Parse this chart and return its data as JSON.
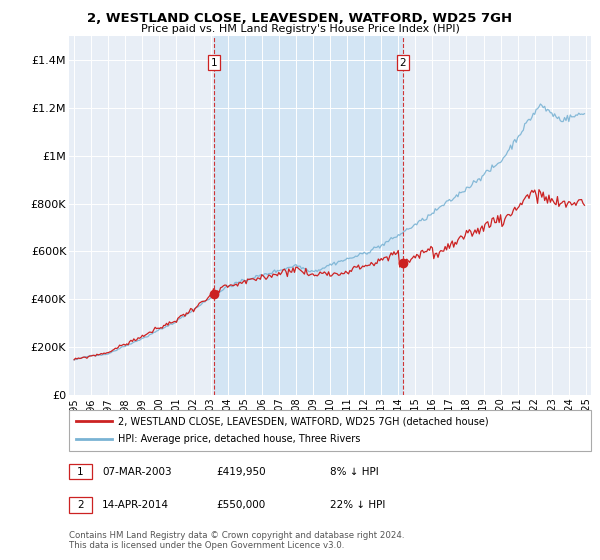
{
  "title": "2, WESTLAND CLOSE, LEAVESDEN, WATFORD, WD25 7GH",
  "subtitle": "Price paid vs. HM Land Registry's House Price Index (HPI)",
  "legend_line1": "2, WESTLAND CLOSE, LEAVESDEN, WATFORD, WD25 7GH (detached house)",
  "legend_line2": "HPI: Average price, detached house, Three Rivers",
  "transaction1_date": "07-MAR-2003",
  "transaction1_price": "£419,950",
  "transaction1_hpi": "8% ↓ HPI",
  "transaction1_year": 2003.18,
  "transaction1_value": 419950,
  "transaction2_date": "14-APR-2014",
  "transaction2_price": "£550,000",
  "transaction2_hpi": "22% ↓ HPI",
  "transaction2_year": 2014.28,
  "transaction2_value": 550000,
  "footer1": "Contains HM Land Registry data © Crown copyright and database right 2024.",
  "footer2": "This data is licensed under the Open Government Licence v3.0.",
  "hpi_color": "#7ab3d4",
  "price_color": "#cc2222",
  "vline_color": "#cc2222",
  "shade_color": "#d0e4f4",
  "background_color": "#ffffff",
  "plot_bg_color": "#e8eef6",
  "grid_color": "#ffffff",
  "ylim": [
    0,
    1500000
  ],
  "xlim": [
    1994.7,
    2025.3
  ]
}
